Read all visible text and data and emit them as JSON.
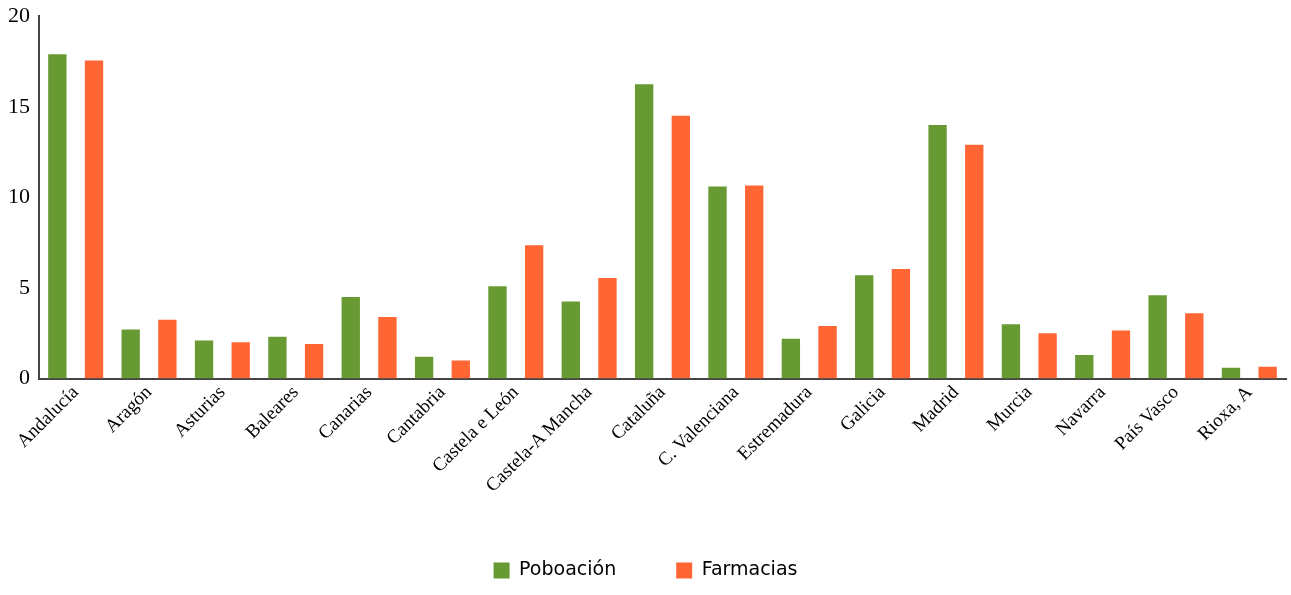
{
  "chart_data": {
    "type": "bar",
    "categories": [
      "Andalucía",
      "Aragón",
      "Asturias",
      "Baleares",
      "Canarias",
      "Cantabria",
      "Castela e León",
      "Castela-A Mancha",
      "Cataluña",
      "C. Valenciana",
      "Estremadura",
      "Galicia",
      "Madrid",
      "Murcia",
      "Navarra",
      "País Vasco",
      "Rioxa, A"
    ],
    "series": [
      {
        "name": "Poboación",
        "color": "#679a33",
        "values": [
          17.9,
          2.7,
          2.1,
          2.3,
          4.5,
          1.2,
          5.1,
          4.25,
          16.25,
          10.6,
          2.2,
          5.7,
          14.0,
          3.0,
          1.3,
          4.6,
          0.6
        ]
      },
      {
        "name": "Farmacias",
        "color": "#ff6633",
        "values": [
          17.55,
          3.25,
          2.0,
          1.9,
          3.4,
          1.0,
          7.35,
          5.55,
          14.5,
          10.65,
          2.9,
          6.05,
          12.9,
          2.5,
          2.65,
          3.6,
          0.65
        ]
      }
    ],
    "ylim": [
      0,
      20
    ],
    "yticks": [
      0,
      5,
      10,
      15,
      20
    ],
    "grid": false,
    "legend": "bottom"
  }
}
